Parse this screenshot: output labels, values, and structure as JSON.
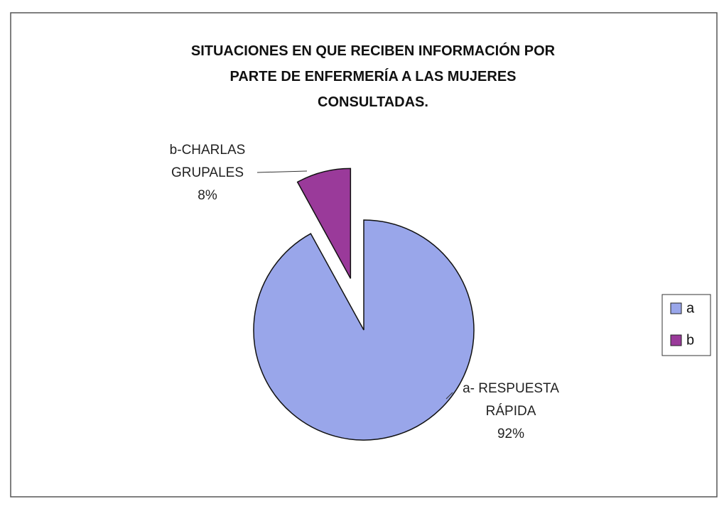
{
  "chart_data": {
    "type": "pie",
    "title": "SITUACIONES EN QUE RECIBEN INFORMACIÓN POR PARTE DE ENFERMERÍA A LAS MUJERES CONSULTADAS.",
    "categories": [
      "a",
      "b"
    ],
    "data_labels": [
      "a- RESPUESTA RÁPIDA",
      "b-CHARLAS GRUPALES"
    ],
    "values": [
      92,
      8
    ],
    "value_labels": [
      "92%",
      "8%"
    ],
    "colors": [
      "#99a6ea",
      "#9a3a9a"
    ],
    "legend": "right"
  }
}
